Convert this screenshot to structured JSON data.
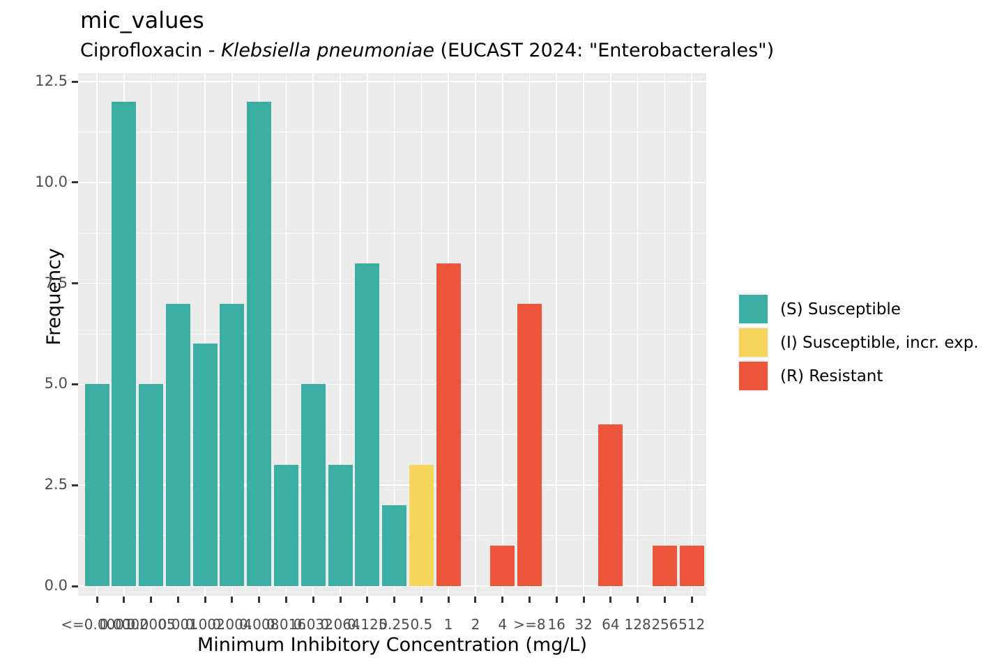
{
  "title": "mic_values",
  "subtitle": {
    "prefix": "Ciprofloxacin - ",
    "species": "Klebsiella pneumoniae",
    "suffix": " (EUCAST 2024: \"Enterobacterales\")"
  },
  "x_axis_title": "Minimum Inhibitory Concentration (mg/L)",
  "y_axis_title": "Frequency",
  "legend": {
    "items": [
      {
        "sir": "S",
        "label": "(S) Susceptible",
        "color": "#3CAEA3"
      },
      {
        "sir": "I",
        "label": "(I) Susceptible, incr. exp.",
        "color": "#F6D55C"
      },
      {
        "sir": "R",
        "label": "(R) Resistant",
        "color": "#ED553B"
      }
    ]
  },
  "chart_data": {
    "type": "bar",
    "title": "mic_values",
    "subtitle": "Ciprofloxacin - Klebsiella pneumoniae (EUCAST 2024: \"Enterobacterales\")",
    "xlabel": "Minimum Inhibitory Concentration (mg/L)",
    "ylabel": "Frequency",
    "ylim": [
      0,
      12.5
    ],
    "grid": true,
    "legend_position": "right",
    "y_tick_labels": [
      "0.0",
      "2.5",
      "5.0",
      "7.5",
      "10.0",
      "12.5"
    ],
    "y_tick_values": [
      0,
      2.5,
      5,
      7.5,
      10,
      12.5
    ],
    "y_minor_step": 1.25,
    "categories": [
      "<=0.0001",
      "0.0002",
      "0.0005",
      "0.001",
      "0.002",
      "0.004",
      "0.008",
      "0.016",
      "0.032",
      "0.064",
      "0.125",
      "0.25",
      "0.5",
      "1",
      "2",
      "4",
      ">=8",
      "16",
      "32",
      "64",
      "128",
      "256",
      "512"
    ],
    "values": [
      5,
      12,
      5,
      7,
      6,
      7,
      12,
      3,
      5,
      3,
      8,
      2,
      3,
      8,
      0,
      1,
      7,
      0,
      0,
      4,
      0,
      1,
      1
    ],
    "interpretation": [
      "S",
      "S",
      "S",
      "S",
      "S",
      "S",
      "S",
      "S",
      "S",
      "S",
      "S",
      "S",
      "I",
      "R",
      "R",
      "R",
      "R",
      "R",
      "R",
      "R",
      "R",
      "R",
      "R"
    ],
    "total_isolates": 100,
    "colors": {
      "S": "#3CAEA3",
      "I": "#F6D55C",
      "R": "#ED553B"
    },
    "panel_bg": "#EBEBEB",
    "grid_color": "#FFFFFF",
    "tick_label_color": "#4D4D4D"
  }
}
